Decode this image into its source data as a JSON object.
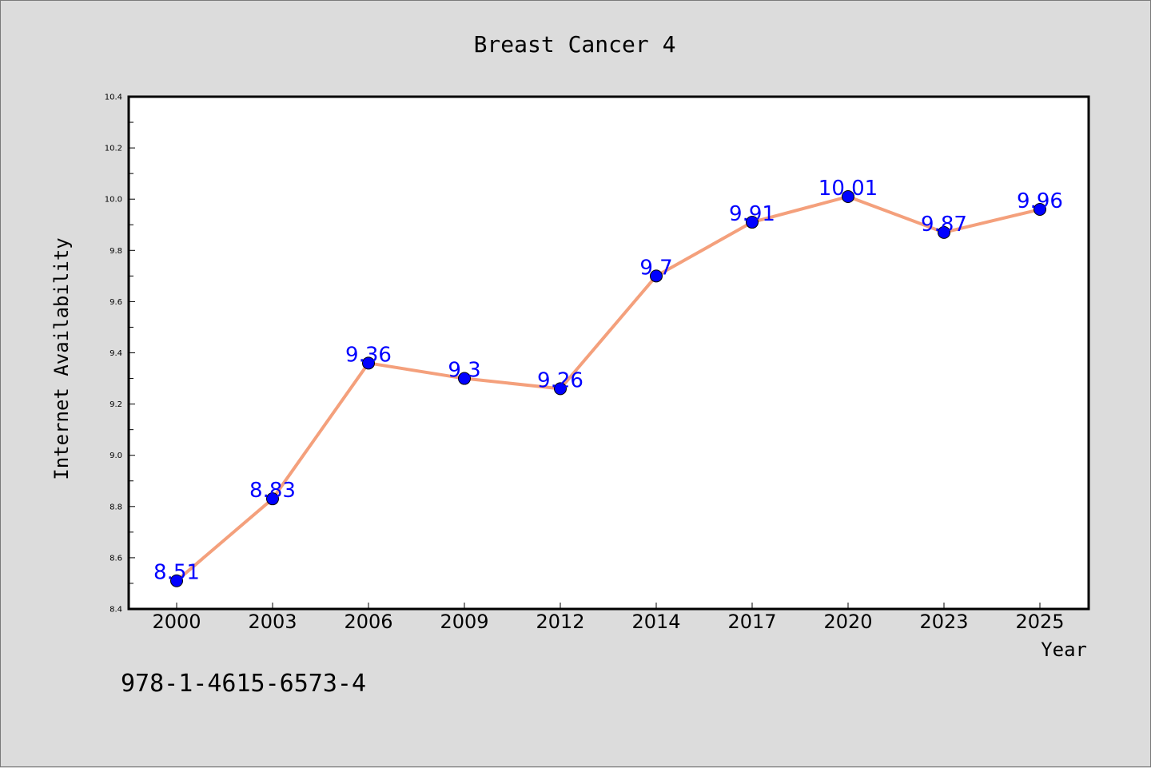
{
  "colors": {
    "background": "#dcdcdc",
    "plot_area": "#ffffff",
    "line": "#f4a07c",
    "marker": "#0000ff",
    "data_label": "#0000ff"
  },
  "footer_text": "978-1-4615-6573-4",
  "chart_data": {
    "type": "line",
    "title": "Breast Cancer 4",
    "xlabel": "Year",
    "ylabel": "Internet Availability",
    "categories": [
      "2000",
      "2003",
      "2006",
      "2009",
      "2012",
      "2014",
      "2017",
      "2020",
      "2023",
      "2025"
    ],
    "series": [
      {
        "values": [
          8.51,
          8.83,
          9.36,
          9.3,
          9.26,
          9.7,
          9.91,
          10.01,
          9.87,
          9.96
        ],
        "labels": [
          "8.51",
          "8.83",
          "9.36",
          "9.3",
          "9.26",
          "9.7",
          "9.91",
          "10.01",
          "9.87",
          "9.96"
        ]
      }
    ],
    "ylim": [
      8.4,
      10.4
    ],
    "yticks": [
      "8.4",
      "8.6",
      "8.8",
      "9.0",
      "9.2",
      "9.4",
      "9.6",
      "9.8",
      "10.0",
      "10.2",
      "10.4"
    ],
    "grid": false,
    "legend": "none"
  }
}
